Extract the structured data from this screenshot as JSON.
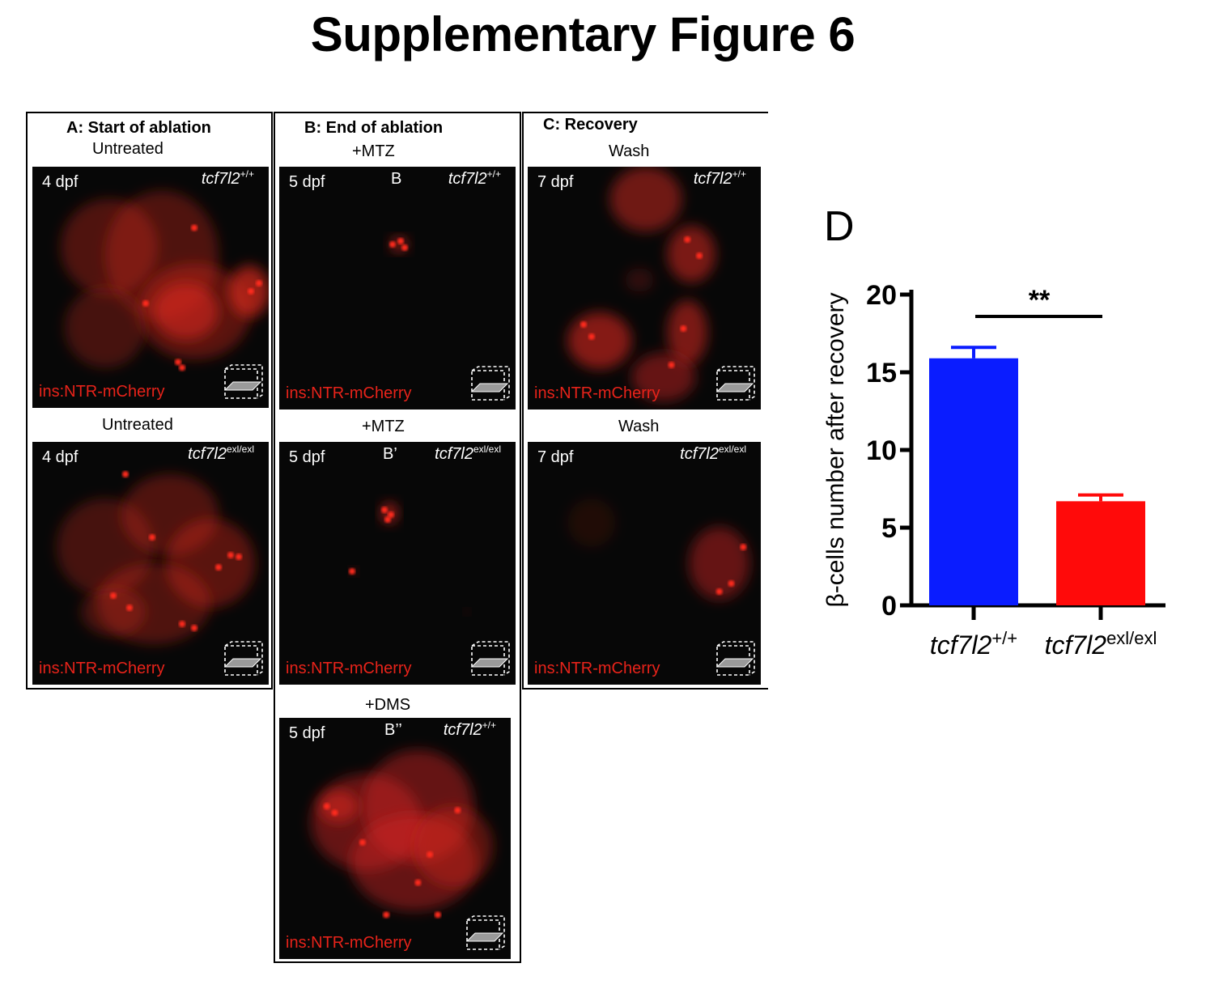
{
  "title": "Supplementary Figure 6",
  "stage_prefix": {
    "A": "4 dpf",
    "B": "5 dpf",
    "C": "7 dpf"
  },
  "columns": [
    {
      "header": "A: Start of ablation",
      "conditions": [
        "Untreated",
        "Untreated"
      ]
    },
    {
      "header": "B: End of ablation",
      "conditions": [
        "+MTZ",
        "+MTZ",
        "+DMS"
      ]
    },
    {
      "header": "C: Recovery",
      "conditions": [
        "Wash",
        "Wash"
      ]
    }
  ],
  "images": [
    {
      "id": "A-top",
      "stage": "4 dpf",
      "sublabel": "",
      "genotype_base": "tcf7l2",
      "genotype_sup": "+/+",
      "reporter": "ins:NTR-mCherry"
    },
    {
      "id": "A-bottom",
      "stage": "4 dpf",
      "sublabel": "",
      "genotype_base": "tcf7l2",
      "genotype_sup": "exl/exl",
      "reporter": "ins:NTR-mCherry"
    },
    {
      "id": "B-top",
      "stage": "5 dpf",
      "sublabel": "B",
      "genotype_base": "tcf7l2",
      "genotype_sup": "+/+",
      "reporter": "ins:NTR-mCherry"
    },
    {
      "id": "B-middle",
      "stage": "5 dpf",
      "sublabel": "B’",
      "genotype_base": "tcf7l2",
      "genotype_sup": "exl/exl",
      "reporter": "ins:NTR-mCherry"
    },
    {
      "id": "B-bottom",
      "stage": "5 dpf",
      "sublabel": "B’’",
      "genotype_base": "tcf7l2",
      "genotype_sup": "+/+",
      "reporter": "ins:NTR-mCherry"
    },
    {
      "id": "C-top",
      "stage": "7 dpf",
      "sublabel": "",
      "genotype_base": "tcf7l2",
      "genotype_sup": "+/+",
      "reporter": "ins:NTR-mCherry"
    },
    {
      "id": "C-bottom",
      "stage": "7 dpf",
      "sublabel": "",
      "genotype_base": "tcf7l2",
      "genotype_sup": "exl/exl",
      "reporter": "ins:NTR-mCherry"
    }
  ],
  "panel_d_label": "D",
  "colors": {
    "reporter_text": "#e8231a",
    "bar_wt": "#0a1cff",
    "bar_mut": "#ff0a0a",
    "signal": "#d8271f"
  },
  "chart_data": {
    "type": "bar",
    "categories": [
      {
        "base": "tcf7l2",
        "sup": "+/+"
      },
      {
        "base": "tcf7l2",
        "sup": "exl/exl"
      }
    ],
    "values": [
      15.9,
      6.7
    ],
    "errors": [
      0.7,
      0.4
    ],
    "colors": [
      "#0a1cff",
      "#ff0a0a"
    ],
    "ylabel": "β-cells number after recovery",
    "ylim": [
      0,
      20
    ],
    "yticks": [
      0,
      5,
      10,
      15,
      20
    ],
    "significance": "**"
  }
}
